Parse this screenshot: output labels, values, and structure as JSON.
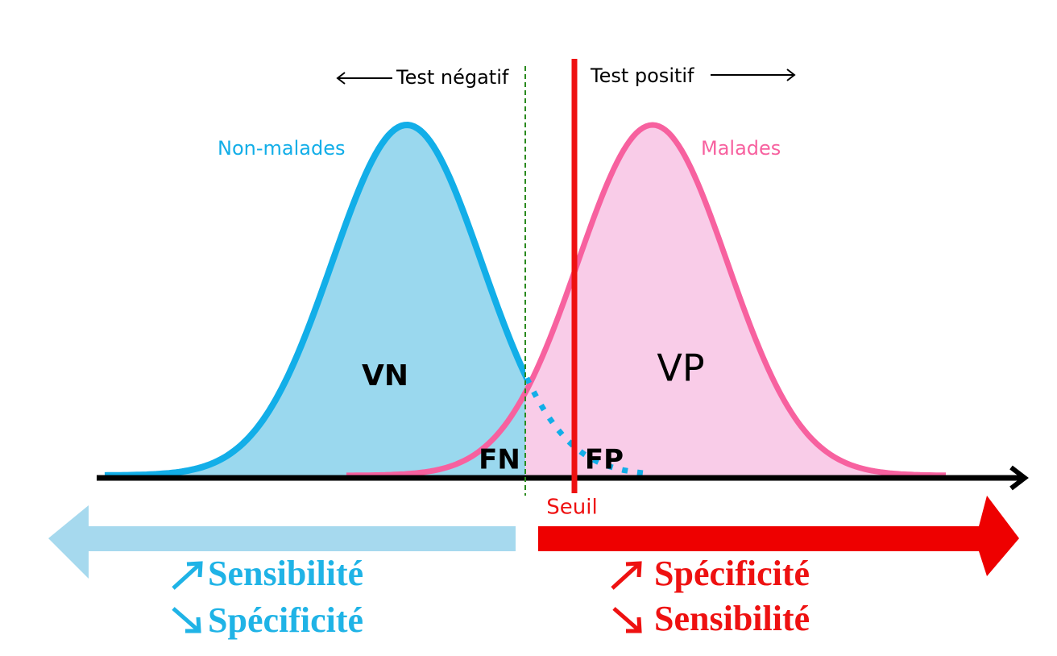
{
  "header": {
    "left": "Test négatif",
    "right": "Test positif"
  },
  "curves": {
    "healthy": "Non-malades",
    "sick": "Malades"
  },
  "regions": {
    "tn": "VN",
    "tp": "VP",
    "fn": "FN",
    "fp": "FP"
  },
  "threshold": "Seuil",
  "left_effect": {
    "up": "Sensibilité",
    "down": "Spécificité"
  },
  "right_effect": {
    "up": "Spécificité",
    "down": "Sensibilité"
  }
}
